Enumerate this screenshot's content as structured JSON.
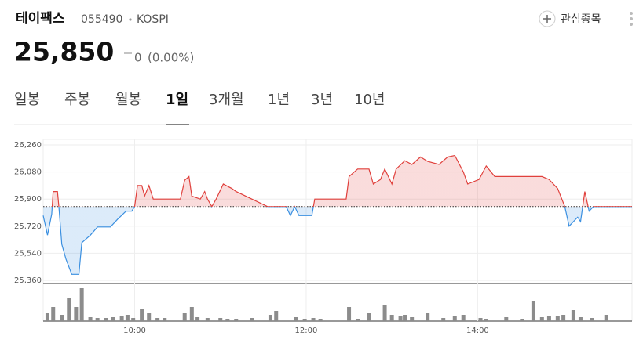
{
  "header": {
    "name": "테이팩스",
    "code": "055490",
    "market": "KOSPI",
    "watch": "관심종목"
  },
  "price": {
    "value": 25850,
    "label": "25,850"
  },
  "change": {
    "amount": "0",
    "percent": "(0.00%)"
  },
  "tabs": {
    "items": [
      "일봉",
      "주봉",
      "월봉",
      "1일",
      "3개월",
      "1년",
      "3년",
      "10년"
    ],
    "selected": 3
  },
  "chart_data": {
    "type": "line",
    "x": [
      536,
      539,
      542,
      543,
      546,
      547,
      549,
      552,
      556,
      561,
      563,
      569,
      574,
      583,
      588,
      594,
      598,
      600,
      602,
      605,
      607,
      610,
      613,
      632,
      635,
      638,
      640,
      646,
      649,
      651,
      654,
      657,
      662,
      668,
      671,
      682,
      693,
      706,
      709,
      712,
      715,
      724,
      726,
      748,
      750,
      756,
      764,
      767,
      772,
      775,
      780,
      783,
      789,
      794,
      800,
      805,
      813,
      819,
      824,
      830,
      833,
      841,
      846,
      852,
      857,
      885,
      890,
      896,
      901,
      904,
      910,
      912,
      915,
      918,
      921,
      948
    ],
    "values": [
      25790,
      25660,
      25800,
      25950,
      25950,
      25850,
      25600,
      25500,
      25400,
      25400,
      25610,
      25660,
      25715,
      25715,
      25765,
      25820,
      25820,
      25850,
      25990,
      25990,
      25920,
      25990,
      25900,
      25900,
      26025,
      26050,
      25920,
      25900,
      25950,
      25900,
      25850,
      25900,
      26000,
      25970,
      25950,
      25900,
      25850,
      25850,
      25790,
      25850,
      25790,
      25790,
      25900,
      25900,
      26050,
      26100,
      26100,
      26000,
      26030,
      26100,
      26000,
      26100,
      26155,
      26130,
      26180,
      26150,
      26130,
      26180,
      26190,
      26080,
      26000,
      26030,
      26120,
      26050,
      26050,
      26050,
      26030,
      25970,
      25850,
      25720,
      25780,
      25750,
      25950,
      25820,
      25850,
      25850
    ],
    "base": 25850,
    "up_color": "#e0403c",
    "down_color": "#3a8fe0",
    "xlim": [
      536,
      948
    ],
    "xticks": [
      {
        "value": 600,
        "label": "10:00"
      },
      {
        "value": 720,
        "label": "12:00"
      },
      {
        "value": 840,
        "label": "14:00"
      }
    ],
    "ylim": [
      25360,
      26260
    ],
    "yticks": [
      {
        "value": 26260,
        "label": "26,260"
      },
      {
        "value": 26080,
        "label": "26,080"
      },
      {
        "value": 25900,
        "label": "25,900"
      },
      {
        "value": 25720,
        "label": "25,720"
      },
      {
        "value": 25540,
        "label": "25,540"
      },
      {
        "value": 25360,
        "label": "25,360"
      }
    ],
    "grid": true,
    "volume": {
      "color": "#8c8c8c",
      "x": [
        539,
        543,
        549,
        554,
        559,
        563,
        569,
        574,
        580,
        585,
        591,
        595,
        599,
        605,
        610,
        616,
        621,
        635,
        640,
        644,
        651,
        660,
        665,
        671,
        682,
        695,
        699,
        713,
        719,
        725,
        730,
        750,
        756,
        764,
        775,
        780,
        786,
        789,
        794,
        805,
        816,
        824,
        830,
        842,
        846,
        860,
        871,
        879,
        885,
        890,
        896,
        900,
        907,
        912,
        920,
        930
      ],
      "values": [
        10000,
        18000,
        8000,
        30000,
        18000,
        42000,
        5000,
        4000,
        4000,
        5000,
        6000,
        8000,
        4000,
        15000,
        10000,
        4000,
        4000,
        10000,
        18000,
        5000,
        4000,
        4000,
        3000,
        3000,
        4000,
        8000,
        13000,
        5000,
        3000,
        4000,
        3000,
        18000,
        3000,
        10000,
        20000,
        8000,
        6000,
        8000,
        5000,
        10000,
        4000,
        6000,
        8000,
        4000,
        3000,
        5000,
        3000,
        25000,
        5000,
        6000,
        6000,
        8000,
        14000,
        5000,
        4000,
        8000
      ]
    }
  }
}
